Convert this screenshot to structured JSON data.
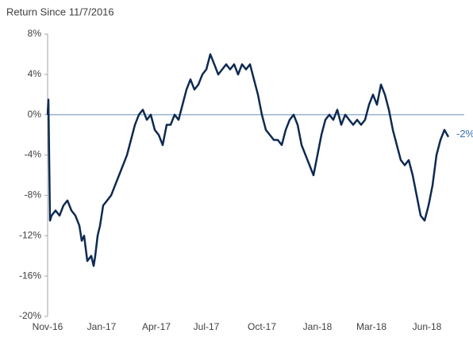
{
  "chart_data": {
    "type": "line",
    "title": "Return Since 11/7/2016",
    "x": [
      0,
      1,
      3,
      5,
      10,
      15,
      20,
      25,
      30,
      35,
      40,
      43,
      46,
      50,
      55,
      58,
      60,
      63,
      66,
      70,
      75,
      80,
      85,
      90,
      95,
      100,
      105,
      110,
      115,
      120,
      125,
      130,
      135,
      140,
      145,
      150,
      155,
      160,
      165,
      170,
      175,
      180,
      185,
      190,
      195,
      200,
      205,
      210,
      215,
      220,
      225,
      230,
      235,
      240,
      245,
      250,
      255,
      260,
      265,
      270,
      275,
      280,
      285,
      290,
      295,
      300,
      305,
      310,
      315,
      320,
      325,
      330,
      335,
      340,
      345,
      350,
      355,
      360,
      365,
      370,
      375,
      380,
      385,
      390,
      395,
      400,
      405,
      410,
      415,
      420,
      425,
      430,
      435,
      440,
      445,
      450,
      455,
      460,
      465,
      470,
      475,
      480,
      485,
      490,
      495,
      500,
      505
    ],
    "series": [
      {
        "name": "Return",
        "color": "#0e2a52",
        "values": [
          0,
          1.5,
          -10.5,
          -10,
          -9.5,
          -10,
          -9,
          -8.5,
          -9.5,
          -10,
          -11,
          -12.5,
          -12,
          -14.5,
          -14,
          -15,
          -14,
          -12,
          -11,
          -9,
          -8.5,
          -8,
          -7,
          -6,
          -5,
          -4,
          -2.5,
          -1,
          0,
          0.5,
          -0.5,
          0,
          -1.5,
          -2,
          -3,
          -1,
          -1,
          0,
          -0.5,
          1,
          2.5,
          3.5,
          2.5,
          3,
          4,
          4.5,
          6,
          5,
          4,
          4.5,
          5,
          4.5,
          5,
          4,
          5,
          4.5,
          5,
          3.5,
          2,
          0,
          -1.5,
          -2,
          -2.5,
          -2.5,
          -3,
          -1.5,
          -0.5,
          0,
          -1,
          -3,
          -4,
          -5,
          -6,
          -4,
          -2,
          -0.5,
          0,
          -0.5,
          0.5,
          -1,
          0,
          -0.5,
          -1,
          -0.5,
          -1,
          -0.5,
          1,
          2,
          1,
          3,
          2,
          0.5,
          -1.5,
          -3,
          -4.5,
          -5,
          -4.5,
          -6,
          -8,
          -10,
          -10.5,
          -9,
          -7,
          -4,
          -2.5,
          -1.5,
          -2.2
        ],
        "end_label": "-2%"
      }
    ],
    "xlim": [
      0,
      525
    ],
    "xticks": [
      {
        "value": 0,
        "label": "Nov-16"
      },
      {
        "value": 68,
        "label": "Jan-17"
      },
      {
        "value": 137,
        "label": "Apr-17"
      },
      {
        "value": 200,
        "label": "Jul-17"
      },
      {
        "value": 270,
        "label": "Oct-17"
      },
      {
        "value": 340,
        "label": "Jan-18"
      },
      {
        "value": 408,
        "label": "Mar-18"
      },
      {
        "value": 478,
        "label": "Jun-18"
      }
    ],
    "ylim": [
      -20,
      8
    ],
    "yticks": [
      {
        "value": 8,
        "label": "8%"
      },
      {
        "value": 4,
        "label": "4%"
      },
      {
        "value": 0,
        "label": "0%"
      },
      {
        "value": -4,
        "label": "-4%"
      },
      {
        "value": -8,
        "label": "-8%"
      },
      {
        "value": -12,
        "label": "-12%"
      },
      {
        "value": -16,
        "label": "-16%"
      },
      {
        "value": -20,
        "label": "-20%"
      }
    ]
  }
}
